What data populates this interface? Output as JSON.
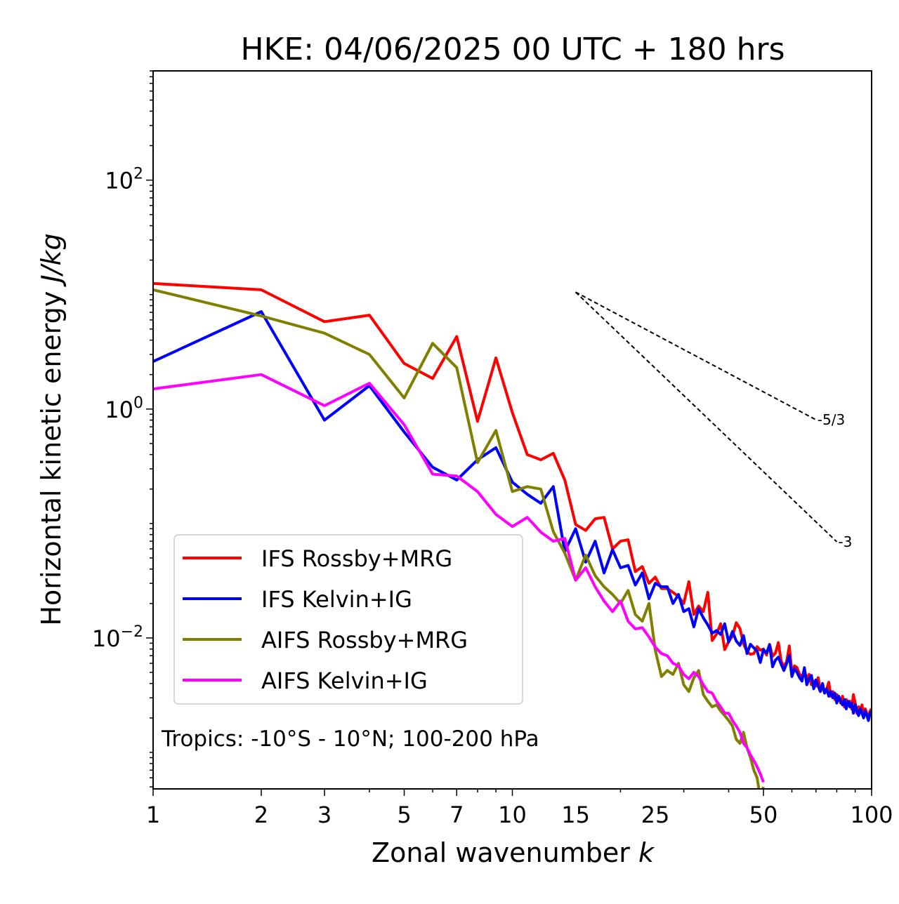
{
  "chart_data": {
    "type": "line",
    "title": "HKE: 04/06/2025 00 UTC + 180 hrs",
    "xlabel_main": "Zonal wavenumber ",
    "xlabel_italic": "k",
    "ylabel_main": "Horizontal kinetic energy ",
    "ylabel_italic": "J/kg",
    "xscale": "log",
    "yscale": "log",
    "xlim": [
      1,
      100
    ],
    "ylim": [
      0.00048,
      900
    ],
    "x_ticks": [
      {
        "value": 1,
        "label": "1"
      },
      {
        "value": 2,
        "label": "2"
      },
      {
        "value": 3,
        "label": "3"
      },
      {
        "value": 5,
        "label": "5"
      },
      {
        "value": 7,
        "label": "7"
      },
      {
        "value": 10,
        "label": "10"
      },
      {
        "value": 15,
        "label": "15"
      },
      {
        "value": 25,
        "label": "25"
      },
      {
        "value": 50,
        "label": "50"
      },
      {
        "value": 100,
        "label": "100"
      }
    ],
    "y_ticks": [
      {
        "value": 100,
        "base": "10",
        "exp": "2"
      },
      {
        "value": 1,
        "base": "10",
        "exp": "0"
      },
      {
        "value": 0.01,
        "base": "10",
        "exp": "−2"
      }
    ],
    "grid": false,
    "legend_position": "lower-left",
    "annotation": "Tropics: -10°S - 10°N; 100-200 hPa",
    "reference_slopes": [
      {
        "label": "-5/3",
        "slope": -1.6667,
        "x_start": 15,
        "x_end": 70,
        "y_start": 10.5
      },
      {
        "label": "-3",
        "slope": -3,
        "x_start": 15,
        "x_end": 80,
        "y_start": 10.5
      }
    ],
    "series": [
      {
        "name": "IFS Rossby+MRG",
        "color": "#ff0000",
        "x": [
          1,
          2,
          3,
          4,
          5,
          6,
          7,
          8,
          9,
          10,
          11,
          12,
          13,
          14,
          15,
          16,
          17,
          18,
          19,
          20,
          21,
          22,
          23,
          24,
          25,
          26,
          27,
          28,
          29,
          30,
          31,
          32,
          33,
          34,
          35,
          36,
          37,
          38,
          39,
          40,
          41,
          42,
          43,
          44,
          45,
          46,
          47,
          48,
          49,
          50,
          51,
          52,
          53,
          54,
          55,
          56,
          57,
          58,
          59,
          60,
          61,
          62,
          63,
          64,
          65,
          66,
          67,
          68,
          69,
          70,
          71,
          72,
          73,
          74,
          75,
          76,
          77,
          78,
          79,
          80,
          81,
          82,
          83,
          84,
          85,
          86,
          87,
          88,
          89,
          90,
          91,
          92,
          93,
          94,
          95,
          96,
          97,
          98,
          99,
          100
        ],
        "y": [
          12.5,
          11,
          5.8,
          6.6,
          2.5,
          1.85,
          4.3,
          0.78,
          2.8,
          0.93,
          0.4,
          0.36,
          0.41,
          0.24,
          0.098,
          0.087,
          0.11,
          0.113,
          0.06,
          0.07,
          0.072,
          0.038,
          0.042,
          0.03,
          0.034,
          0.027,
          0.027,
          0.025,
          0.023,
          0.02,
          0.031,
          0.016,
          0.019,
          0.017,
          0.025,
          0.0095,
          0.0108,
          0.0133,
          0.0079,
          0.0093,
          0.0104,
          0.0136,
          0.0121,
          0.0089,
          0.0076,
          0.0072,
          0.0073,
          0.0084,
          0.0078,
          0.008,
          0.0071,
          0.0088,
          0.0069,
          0.0074,
          0.0091,
          0.0063,
          0.0056,
          0.0062,
          0.0085,
          0.005,
          0.0057,
          0.0055,
          0.0048,
          0.0046,
          0.0052,
          0.0044,
          0.0048,
          0.0039,
          0.0042,
          0.0038,
          0.0045,
          0.0035,
          0.0037,
          0.0033,
          0.0036,
          0.0041,
          0.0031,
          0.0034,
          0.0029,
          0.0032,
          0.003,
          0.0027,
          0.0031,
          0.0025,
          0.0029,
          0.0026,
          0.0028,
          0.0024,
          0.0032,
          0.0027,
          0.0022,
          0.0025,
          0.0023,
          0.0026,
          0.0021,
          0.0024,
          0.0022,
          0.002,
          0.0023,
          0.0024
        ]
      },
      {
        "name": "IFS Kelvin+IG",
        "color": "#0000ff",
        "x": [
          1,
          2,
          3,
          4,
          5,
          6,
          7,
          8,
          9,
          10,
          11,
          12,
          13,
          14,
          15,
          16,
          17,
          18,
          19,
          20,
          21,
          22,
          23,
          24,
          25,
          26,
          27,
          28,
          29,
          30,
          31,
          32,
          33,
          34,
          35,
          36,
          37,
          38,
          39,
          40,
          41,
          42,
          43,
          44,
          45,
          46,
          47,
          48,
          49,
          50,
          51,
          52,
          53,
          54,
          55,
          56,
          57,
          58,
          59,
          60,
          61,
          62,
          63,
          64,
          65,
          66,
          67,
          68,
          69,
          70,
          71,
          72,
          73,
          74,
          75,
          76,
          77,
          78,
          79,
          80,
          81,
          82,
          83,
          84,
          85,
          86,
          87,
          88,
          89,
          90,
          91,
          92,
          93,
          94,
          95,
          96,
          97,
          98,
          99,
          100
        ],
        "y": [
          2.6,
          7.1,
          0.8,
          1.6,
          0.63,
          0.31,
          0.24,
          0.36,
          0.46,
          0.23,
          0.18,
          0.15,
          0.21,
          0.057,
          0.09,
          0.046,
          0.07,
          0.037,
          0.059,
          0.041,
          0.043,
          0.029,
          0.037,
          0.022,
          0.03,
          0.028,
          0.028,
          0.02,
          0.024,
          0.017,
          0.018,
          0.0125,
          0.018,
          0.015,
          0.013,
          0.011,
          0.0116,
          0.0107,
          0.0133,
          0.0092,
          0.0114,
          0.0094,
          0.0086,
          0.0105,
          0.0073,
          0.0088,
          0.0082,
          0.0077,
          0.0061,
          0.0079,
          0.0074,
          0.0087,
          0.0056,
          0.0064,
          0.0068,
          0.0059,
          0.0052,
          0.006,
          0.007,
          0.0046,
          0.0054,
          0.005,
          0.0045,
          0.0042,
          0.0055,
          0.0039,
          0.0044,
          0.0047,
          0.0036,
          0.0043,
          0.0038,
          0.0034,
          0.004,
          0.0033,
          0.0036,
          0.0031,
          0.0034,
          0.003,
          0.0033,
          0.0027,
          0.0031,
          0.0028,
          0.0026,
          0.0029,
          0.0024,
          0.0028,
          0.0025,
          0.0027,
          0.0022,
          0.0026,
          0.0023,
          0.0021,
          0.0024,
          0.0022,
          0.002,
          0.0023,
          0.0021,
          0.0019,
          0.0022,
          0.0023
        ]
      },
      {
        "name": "AIFS Rossby+MRG",
        "color": "#808000",
        "x": [
          1,
          2,
          3,
          4,
          5,
          6,
          7,
          8,
          9,
          10,
          11,
          12,
          13,
          14,
          15,
          16,
          17,
          18,
          19,
          20,
          21,
          22,
          23,
          24,
          25,
          26,
          27,
          28,
          29,
          30,
          31,
          32,
          33,
          34,
          35,
          36,
          37,
          38,
          39,
          40,
          41,
          42,
          43,
          44,
          45,
          46,
          47,
          48,
          49,
          50
        ],
        "y": [
          11,
          6.5,
          4.6,
          3.0,
          1.25,
          3.75,
          2.3,
          0.34,
          0.65,
          0.19,
          0.21,
          0.2,
          0.085,
          0.055,
          0.032,
          0.053,
          0.035,
          0.028,
          0.024,
          0.02,
          0.026,
          0.016,
          0.014,
          0.02,
          0.0078,
          0.0046,
          0.0052,
          0.0048,
          0.006,
          0.0039,
          0.0034,
          0.0045,
          0.0052,
          0.0032,
          0.0028,
          0.0025,
          0.0026,
          0.0023,
          0.0021,
          0.0019,
          0.0017,
          0.0013,
          0.0012,
          0.0015,
          0.0011,
          0.0009,
          0.0007,
          0.0006,
          0.0004,
          0.0005
        ]
      },
      {
        "name": "AIFS Kelvin+IG",
        "color": "#ff00ff",
        "x": [
          1,
          2,
          3,
          4,
          5,
          6,
          7,
          8,
          9,
          10,
          11,
          12,
          13,
          14,
          15,
          16,
          17,
          18,
          19,
          20,
          21,
          22,
          23,
          24,
          25,
          26,
          27,
          28,
          29,
          30,
          31,
          32,
          33,
          34,
          35,
          36,
          37,
          38,
          39,
          40,
          41,
          42,
          43,
          44,
          45,
          46,
          47,
          48,
          49,
          50
        ],
        "y": [
          1.5,
          2.0,
          1.07,
          1.68,
          0.73,
          0.27,
          0.26,
          0.19,
          0.12,
          0.094,
          0.113,
          0.084,
          0.07,
          0.074,
          0.032,
          0.041,
          0.028,
          0.021,
          0.017,
          0.021,
          0.014,
          0.012,
          0.0123,
          0.0102,
          0.0083,
          0.0073,
          0.007,
          0.006,
          0.0057,
          0.0048,
          0.0044,
          0.005,
          0.0046,
          0.0039,
          0.0034,
          0.0033,
          0.0028,
          0.0025,
          0.0022,
          0.0022,
          0.0019,
          0.0017,
          0.0015,
          0.0012,
          0.0011,
          0.00095,
          0.00085,
          0.00075,
          0.00065,
          0.00055
        ]
      }
    ]
  }
}
